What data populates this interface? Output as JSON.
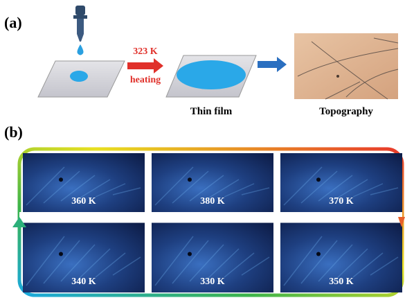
{
  "panel_a": {
    "label": "(a)",
    "temperature": "323 K",
    "process": "heating",
    "steps": [
      "Thin film",
      "Topography"
    ]
  },
  "panel_b": {
    "label": "(b)",
    "images": [
      "360 K",
      "380 K",
      "370 K",
      "340 K",
      "330 K",
      "350 K"
    ]
  }
}
